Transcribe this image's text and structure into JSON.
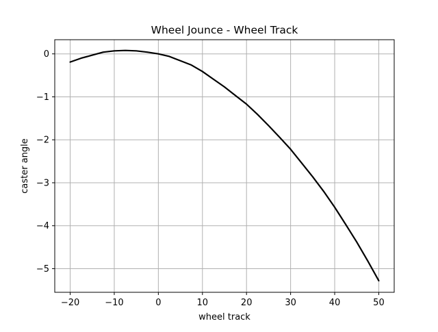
{
  "chart_data": {
    "type": "line",
    "title": "Wheel Jounce - Wheel Track",
    "xlabel": "wheel track",
    "ylabel": "caster angle",
    "xlim": [
      -23.5,
      53.5
    ],
    "ylim": [
      -5.55,
      0.33
    ],
    "xticks": [
      -20,
      -10,
      0,
      10,
      20,
      30,
      40,
      50
    ],
    "xtick_labels": [
      "−20",
      "−10",
      "0",
      "10",
      "20",
      "30",
      "40",
      "50"
    ],
    "yticks": [
      0,
      -1,
      -2,
      -3,
      -4,
      -5
    ],
    "ytick_labels": [
      "0",
      "−1",
      "−2",
      "−3",
      "−4",
      "−5"
    ],
    "grid": true,
    "line_color": "#000000",
    "grid_color": "#b0b0b0",
    "x": [
      -20,
      -17.5,
      -15,
      -12.5,
      -10,
      -7.5,
      -5,
      -2.5,
      0,
      2.5,
      5,
      7.5,
      10,
      12.5,
      15,
      17.5,
      20,
      22.5,
      25,
      27.5,
      30,
      32.5,
      35,
      37.5,
      40,
      42.5,
      45,
      47.5,
      50
    ],
    "y": [
      -0.19,
      -0.1,
      -0.03,
      0.04,
      0.07,
      0.08,
      0.07,
      0.04,
      0.0,
      -0.06,
      -0.16,
      -0.26,
      -0.41,
      -0.59,
      -0.77,
      -0.97,
      -1.17,
      -1.41,
      -1.67,
      -1.94,
      -2.22,
      -2.54,
      -2.86,
      -3.2,
      -3.57,
      -3.97,
      -4.38,
      -4.82,
      -5.28
    ]
  }
}
